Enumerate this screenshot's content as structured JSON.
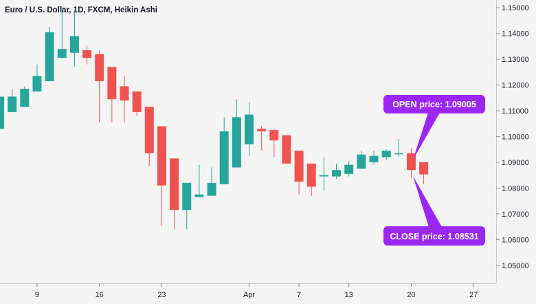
{
  "chart_data": {
    "type": "candlestick",
    "title": "Euro / U.S. Dollar, 1D, FXCM, Heikin Ashi",
    "ylim": [
      1.043,
      1.153
    ],
    "y_ticks": [
      "1.15000",
      "1.14000",
      "1.13000",
      "1.12000",
      "1.11000",
      "1.10000",
      "1.09000",
      "1.08000",
      "1.07000",
      "1.06000",
      "1.05000"
    ],
    "x_tick_labels": [
      {
        "label": "9",
        "index": 3
      },
      {
        "label": "16",
        "index": 8
      },
      {
        "label": "23",
        "index": 13
      },
      {
        "label": "Apr",
        "index": 20
      },
      {
        "label": "7",
        "index": 24
      },
      {
        "label": "13",
        "index": 28
      },
      {
        "label": "20",
        "index": 33
      },
      {
        "label": "27",
        "index": 38
      }
    ],
    "colors": {
      "up": "#26a69a",
      "down": "#ef5350",
      "callout": "#9c27f5"
    },
    "candles": [
      {
        "o": 1.103,
        "h": 1.1155,
        "l": 1.103,
        "c": 1.1155
      },
      {
        "o": 1.1095,
        "h": 1.1185,
        "l": 1.1095,
        "c": 1.1155
      },
      {
        "o": 1.1115,
        "h": 1.1195,
        "l": 1.1115,
        "c": 1.1185
      },
      {
        "o": 1.1175,
        "h": 1.128,
        "l": 1.1175,
        "c": 1.1235
      },
      {
        "o": 1.1215,
        "h": 1.1425,
        "l": 1.1215,
        "c": 1.1405
      },
      {
        "o": 1.1305,
        "h": 1.1505,
        "l": 1.1305,
        "c": 1.134
      },
      {
        "o": 1.1325,
        "h": 1.149,
        "l": 1.127,
        "c": 1.139
      },
      {
        "o": 1.1335,
        "h": 1.1355,
        "l": 1.128,
        "c": 1.1305
      },
      {
        "o": 1.132,
        "h": 1.1335,
        "l": 1.1055,
        "c": 1.1215
      },
      {
        "o": 1.127,
        "h": 1.127,
        "l": 1.1055,
        "c": 1.1145
      },
      {
        "o": 1.1195,
        "h": 1.1235,
        "l": 1.1055,
        "c": 1.114
      },
      {
        "o": 1.1175,
        "h": 1.1175,
        "l": 1.108,
        "c": 1.1095
      },
      {
        "o": 1.1115,
        "h": 1.1115,
        "l": 1.0885,
        "c": 1.0935
      },
      {
        "o": 1.104,
        "h": 1.104,
        "l": 1.0655,
        "c": 1.081
      },
      {
        "o": 1.0915,
        "h": 1.0915,
        "l": 1.064,
        "c": 1.0715
      },
      {
        "o": 1.0715,
        "h": 1.082,
        "l": 1.064,
        "c": 1.082
      },
      {
        "o": 1.0765,
        "h": 1.089,
        "l": 1.0765,
        "c": 1.0775
      },
      {
        "o": 1.077,
        "h": 1.088,
        "l": 1.077,
        "c": 1.082
      },
      {
        "o": 1.0815,
        "h": 1.1075,
        "l": 1.0815,
        "c": 1.102
      },
      {
        "o": 1.088,
        "h": 1.1145,
        "l": 1.088,
        "c": 1.1075
      },
      {
        "o": 1.097,
        "h": 1.1135,
        "l": 1.0925,
        "c": 1.1085
      },
      {
        "o": 1.103,
        "h": 1.104,
        "l": 1.0945,
        "c": 1.102
      },
      {
        "o": 1.1025,
        "h": 1.103,
        "l": 1.092,
        "c": 1.0985
      },
      {
        "o": 1.1005,
        "h": 1.1005,
        "l": 1.0895,
        "c": 1.0895
      },
      {
        "o": 1.0945,
        "h": 1.0945,
        "l": 1.0775,
        "c": 1.0825
      },
      {
        "o": 1.0895,
        "h": 1.0895,
        "l": 1.077,
        "c": 1.0805
      },
      {
        "o": 1.0845,
        "h": 1.092,
        "l": 1.079,
        "c": 1.085
      },
      {
        "o": 1.0845,
        "h": 1.0895,
        "l": 1.0835,
        "c": 1.087
      },
      {
        "o": 1.0855,
        "h": 1.0905,
        "l": 1.0845,
        "c": 1.089
      },
      {
        "o": 1.0875,
        "h": 1.0945,
        "l": 1.0875,
        "c": 1.093
      },
      {
        "o": 1.09,
        "h": 1.0945,
        "l": 1.089,
        "c": 1.0925
      },
      {
        "o": 1.092,
        "h": 1.095,
        "l": 1.091,
        "c": 1.0945
      },
      {
        "o": 1.0935,
        "h": 1.099,
        "l": 1.092,
        "c": 1.0935
      },
      {
        "o": 1.0935,
        "h": 1.0955,
        "l": 1.084,
        "c": 1.087
      },
      {
        "o": 1.09005,
        "h": 1.09005,
        "l": 1.0815,
        "c": 1.08531
      }
    ],
    "annotations": [
      {
        "text": "OPEN price: 1.09005"
      },
      {
        "text": "CLOSE price: 1.08531"
      }
    ]
  }
}
